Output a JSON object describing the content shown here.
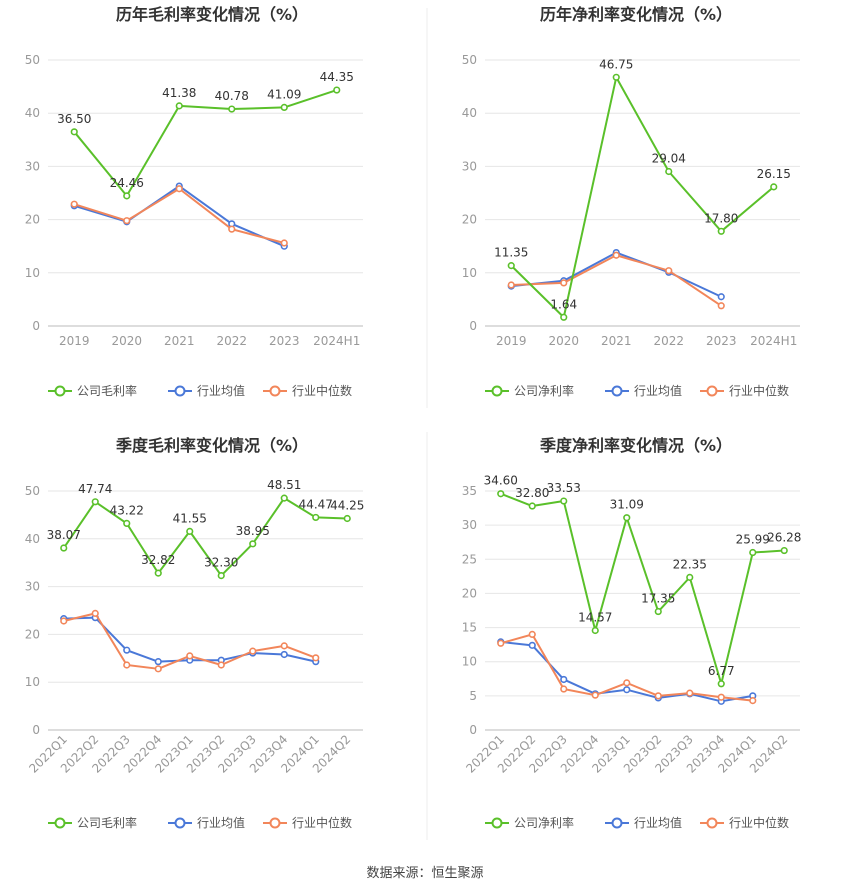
{
  "colors": {
    "company": "#5ac02a",
    "industry_mean": "#4a78d8",
    "industry_median": "#f2865a",
    "grid": "#e6e6e6",
    "axis_text": "#999999",
    "label_text": "#333333"
  },
  "source_text": "数据来源：恒生聚源",
  "chart_data": [
    {
      "type": "line",
      "title": "历年毛利率变化情况（%）",
      "categories": [
        "2019",
        "2020",
        "2021",
        "2022",
        "2023",
        "2024H1"
      ],
      "ylim": [
        0,
        50
      ],
      "yticks": [
        0,
        10,
        20,
        30,
        40,
        50
      ],
      "grid": true,
      "legend_position": "bottom",
      "series": [
        {
          "name": "公司毛利率",
          "values": [
            36.5,
            24.46,
            41.38,
            40.78,
            41.09,
            44.35
          ],
          "labels": [
            "36.50",
            "24.46",
            "41.38",
            "40.78",
            "41.09",
            "44.35"
          ]
        },
        {
          "name": "行业均值",
          "values": [
            22.6,
            19.6,
            26.3,
            19.2,
            15.0,
            null
          ]
        },
        {
          "name": "行业中位数",
          "values": [
            22.9,
            19.8,
            25.8,
            18.2,
            15.6,
            null
          ]
        }
      ]
    },
    {
      "type": "line",
      "title": "历年净利率变化情况（%）",
      "categories": [
        "2019",
        "2020",
        "2021",
        "2022",
        "2023",
        "2024H1"
      ],
      "ylim": [
        0,
        50
      ],
      "yticks": [
        0,
        10,
        20,
        30,
        40,
        50
      ],
      "grid": true,
      "legend_position": "bottom",
      "series": [
        {
          "name": "公司净利率",
          "values": [
            11.35,
            1.64,
            46.75,
            29.04,
            17.8,
            26.15
          ],
          "labels": [
            "11.35",
            "1.64",
            "46.75",
            "29.04",
            "17.80",
            "26.15"
          ]
        },
        {
          "name": "行业均值",
          "values": [
            7.5,
            8.5,
            13.8,
            10.1,
            5.5,
            null
          ]
        },
        {
          "name": "行业中位数",
          "values": [
            7.7,
            8.1,
            13.3,
            10.4,
            3.8,
            null
          ]
        }
      ]
    },
    {
      "type": "line",
      "title": "季度毛利率变化情况（%）",
      "categories": [
        "2022Q1",
        "2022Q2",
        "2022Q3",
        "2022Q4",
        "2023Q1",
        "2023Q2",
        "2023Q3",
        "2023Q4",
        "2024Q1",
        "2024Q2"
      ],
      "ylim": [
        0,
        50
      ],
      "yticks": [
        0,
        10,
        20,
        30,
        40,
        50
      ],
      "grid": true,
      "legend_position": "bottom",
      "series": [
        {
          "name": "公司毛利率",
          "values": [
            38.07,
            47.74,
            43.22,
            32.82,
            41.55,
            32.3,
            38.95,
            48.51,
            44.47,
            44.25
          ],
          "labels": [
            "38.07",
            "47.74",
            "43.22",
            "32.82",
            "41.55",
            "32.30",
            "38.95",
            "48.51",
            "44.47",
            "44.25"
          ]
        },
        {
          "name": "行业均值",
          "values": [
            23.3,
            23.5,
            16.7,
            14.3,
            14.6,
            14.6,
            16.1,
            15.8,
            14.3,
            null
          ]
        },
        {
          "name": "行业中位数",
          "values": [
            22.8,
            24.4,
            13.6,
            12.8,
            15.5,
            13.6,
            16.5,
            17.6,
            15.1,
            null
          ]
        }
      ]
    },
    {
      "type": "line",
      "title": "季度净利率变化情况（%）",
      "categories": [
        "2022Q1",
        "2022Q2",
        "2022Q3",
        "2022Q4",
        "2023Q1",
        "2023Q2",
        "2023Q3",
        "2023Q4",
        "2024Q1",
        "2024Q2"
      ],
      "ylim": [
        0,
        35
      ],
      "yticks": [
        0,
        5,
        10,
        15,
        20,
        25,
        30,
        35
      ],
      "grid": true,
      "legend_position": "bottom",
      "series": [
        {
          "name": "公司净利率",
          "values": [
            34.6,
            32.8,
            33.53,
            14.57,
            31.09,
            17.35,
            22.35,
            6.77,
            25.99,
            26.28
          ],
          "labels": [
            "34.60",
            "32.80",
            "33.53",
            "14.57",
            "31.09",
            "17.35",
            "22.35",
            "6.77",
            "25.99",
            "26.28"
          ]
        },
        {
          "name": "行业均值",
          "values": [
            12.9,
            12.4,
            7.4,
            5.3,
            5.9,
            4.7,
            5.3,
            4.2,
            5.0,
            null
          ]
        },
        {
          "name": "行业中位数",
          "values": [
            12.7,
            14.0,
            6.0,
            5.1,
            6.9,
            5.0,
            5.4,
            4.8,
            4.3,
            null
          ]
        }
      ]
    }
  ]
}
